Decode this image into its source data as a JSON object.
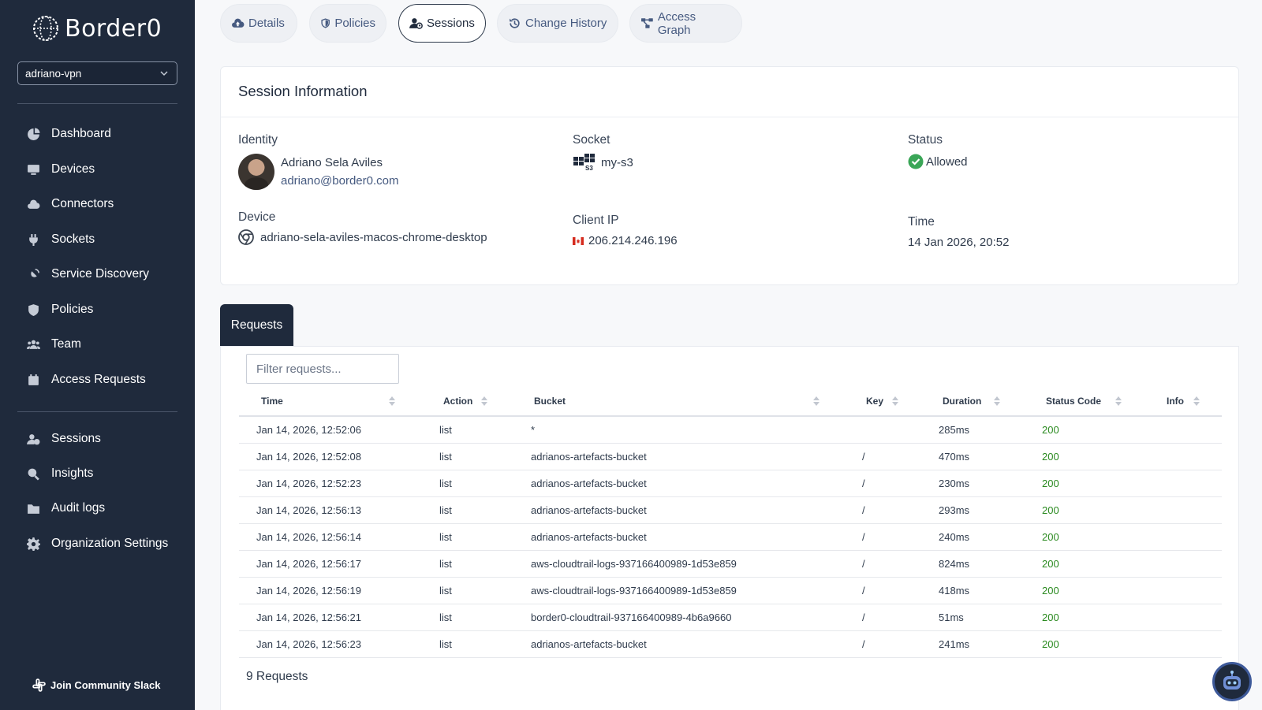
{
  "app": {
    "name": "Border0"
  },
  "sidebar": {
    "org_selector": "adriano-vpn",
    "nav_primary": [
      {
        "label": "Dashboard",
        "icon": "pie-chart-icon"
      },
      {
        "label": "Devices",
        "icon": "monitor-icon"
      },
      {
        "label": "Connectors",
        "icon": "cloud-icon"
      },
      {
        "label": "Sockets",
        "icon": "plug-icon"
      },
      {
        "label": "Service Discovery",
        "icon": "satellite-icon"
      },
      {
        "label": "Policies",
        "icon": "shield-icon"
      },
      {
        "label": "Team",
        "icon": "users-icon"
      },
      {
        "label": "Access Requests",
        "icon": "calendar-icon"
      }
    ],
    "nav_secondary": [
      {
        "label": "Sessions",
        "icon": "user-clock-icon"
      },
      {
        "label": "Insights",
        "icon": "magnify-icon"
      },
      {
        "label": "Audit logs",
        "icon": "folder-icon"
      },
      {
        "label": "Organization Settings",
        "icon": "gear-icon"
      }
    ],
    "community": "Join Community Slack"
  },
  "tabs": [
    {
      "label": "Details",
      "icon": "cloud-upload-icon",
      "active": false
    },
    {
      "label": "Policies",
      "icon": "shield-icon",
      "active": false
    },
    {
      "label": "Sessions",
      "icon": "user-clock-icon",
      "active": true
    },
    {
      "label": "Change History",
      "icon": "history-icon",
      "active": false
    },
    {
      "label": "Access Graph",
      "icon": "graph-icon",
      "active": false
    }
  ],
  "session": {
    "title": "Session Information",
    "identity": {
      "label": "Identity",
      "name": "Adriano Sela Aviles",
      "email": "adriano@border0.com"
    },
    "socket": {
      "label": "Socket",
      "value": "my-s3",
      "icon_text": "S3"
    },
    "status": {
      "label": "Status",
      "value": "Allowed"
    },
    "device": {
      "label": "Device",
      "value": "adriano-sela-aviles-macos-chrome-desktop"
    },
    "client_ip": {
      "label": "Client IP",
      "value": "206.214.246.196"
    },
    "time": {
      "label": "Time",
      "value": "14 Jan 2026, 20:52"
    }
  },
  "requests": {
    "tab_label": "Requests",
    "filter_placeholder": "Filter requests...",
    "columns": [
      "Time",
      "Action",
      "Bucket",
      "Key",
      "Duration",
      "Status Code",
      "Info"
    ],
    "rows": [
      {
        "time": "Jan 14, 2026, 12:52:06",
        "action": "list",
        "bucket": "*",
        "key": "",
        "duration": "285ms",
        "status": "200",
        "info": ""
      },
      {
        "time": "Jan 14, 2026, 12:52:08",
        "action": "list",
        "bucket": "adrianos-artefacts-bucket",
        "key": "/",
        "duration": "470ms",
        "status": "200",
        "info": ""
      },
      {
        "time": "Jan 14, 2026, 12:52:23",
        "action": "list",
        "bucket": "adrianos-artefacts-bucket",
        "key": "/",
        "duration": "230ms",
        "status": "200",
        "info": ""
      },
      {
        "time": "Jan 14, 2026, 12:56:13",
        "action": "list",
        "bucket": "adrianos-artefacts-bucket",
        "key": "/",
        "duration": "293ms",
        "status": "200",
        "info": ""
      },
      {
        "time": "Jan 14, 2026, 12:56:14",
        "action": "list",
        "bucket": "adrianos-artefacts-bucket",
        "key": "/",
        "duration": "240ms",
        "status": "200",
        "info": ""
      },
      {
        "time": "Jan 14, 2026, 12:56:17",
        "action": "list",
        "bucket": "aws-cloudtrail-logs-937166400989-1d53e859",
        "key": "/",
        "duration": "824ms",
        "status": "200",
        "info": ""
      },
      {
        "time": "Jan 14, 2026, 12:56:19",
        "action": "list",
        "bucket": "aws-cloudtrail-logs-937166400989-1d53e859",
        "key": "/",
        "duration": "418ms",
        "status": "200",
        "info": ""
      },
      {
        "time": "Jan 14, 2026, 12:56:21",
        "action": "list",
        "bucket": "border0-cloudtrail-937166400989-4b6a9660",
        "key": "/",
        "duration": "51ms",
        "status": "200",
        "info": ""
      },
      {
        "time": "Jan 14, 2026, 12:56:23",
        "action": "list",
        "bucket": "adrianos-artefacts-bucket",
        "key": "/",
        "duration": "241ms",
        "status": "200",
        "info": ""
      }
    ],
    "count_label": "9 Requests"
  },
  "colors": {
    "sidebar_bg": "#1f2a3c",
    "status_green": "#2a8a1f",
    "success_check": "#3aa657"
  }
}
